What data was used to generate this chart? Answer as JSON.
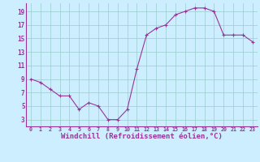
{
  "x": [
    0,
    1,
    2,
    3,
    4,
    5,
    6,
    7,
    8,
    9,
    10,
    11,
    12,
    13,
    14,
    15,
    16,
    17,
    18,
    19,
    20,
    21,
    22,
    23
  ],
  "y": [
    9,
    8.5,
    7.5,
    6.5,
    6.5,
    4.5,
    5.5,
    5,
    3,
    3,
    4.5,
    10.5,
    15.5,
    16.5,
    17,
    18.5,
    19,
    19.5,
    19.5,
    19,
    15.5,
    15.5,
    15.5,
    14.5
  ],
  "line_color": "#993399",
  "marker": "+",
  "markersize": 3.5,
  "linewidth": 0.8,
  "xlabel": "Windchill (Refroidissement éolien,°C)",
  "background_color": "#cceeff",
  "grid_color": "#99cccc",
  "tick_color": "#993399",
  "label_color": "#993399",
  "xlim": [
    -0.5,
    23.5
  ],
  "ylim": [
    2,
    20.2
  ],
  "xticks": [
    0,
    1,
    2,
    3,
    4,
    5,
    6,
    7,
    8,
    9,
    10,
    11,
    12,
    13,
    14,
    15,
    16,
    17,
    18,
    19,
    20,
    21,
    22,
    23
  ],
  "yticks": [
    3,
    5,
    7,
    9,
    11,
    13,
    15,
    17,
    19
  ],
  "xtick_fontsize": 4.8,
  "ytick_fontsize": 5.5,
  "xlabel_fontsize": 6.5
}
